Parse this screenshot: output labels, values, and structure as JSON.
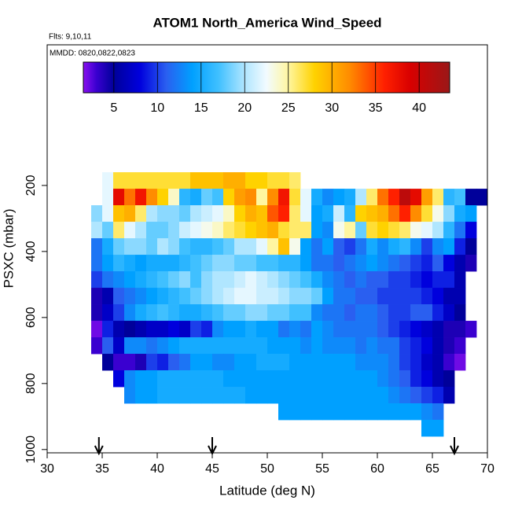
{
  "chart_data": {
    "type": "heatmap",
    "title": "ATOM1 North_America Wind_Speed",
    "subtitle": "Flts: 9,10,11",
    "annotation": "MMDD: 0820,0822,0823",
    "x_label": "Latitude (deg N)",
    "y_label": "PSXC (mbar)",
    "xlim": [
      30,
      70
    ],
    "xticks": [
      30,
      35,
      40,
      45,
      50,
      55,
      60,
      65,
      70
    ],
    "ylim": [
      1010,
      -226
    ],
    "yticks": [
      200,
      400,
      600,
      800,
      1000
    ],
    "xbins": [
      34,
      35,
      36,
      37,
      38,
      39,
      40,
      41,
      42,
      43,
      44,
      45,
      46,
      47,
      48,
      49,
      50,
      51,
      52,
      53,
      54,
      55,
      56,
      57,
      58,
      59,
      60,
      61,
      62,
      63,
      64,
      65,
      66,
      67,
      68,
      69,
      70
    ],
    "ybins": [
      160,
      210,
      260,
      310,
      360,
      410,
      460,
      510,
      560,
      610,
      660,
      710,
      760,
      810,
      860,
      910,
      960
    ],
    "z": [
      [
        null,
        22,
        27,
        27,
        27,
        27,
        27,
        27,
        27,
        29,
        29,
        29,
        30,
        30,
        28,
        28,
        27,
        27,
        26,
        null,
        null,
        null,
        null,
        null,
        null,
        null,
        null,
        null,
        null,
        null,
        null,
        null,
        null,
        null,
        null,
        null
      ],
      [
        null,
        22,
        38,
        33,
        37,
        32,
        28,
        24,
        16,
        15,
        18,
        17,
        28,
        31,
        32,
        25,
        32,
        37,
        27,
        22,
        15,
        13,
        14,
        15,
        20,
        26,
        33,
        36,
        41,
        38,
        31,
        26,
        16,
        17,
        5,
        5
      ],
      [
        19,
        22,
        29,
        30,
        26,
        20,
        19,
        19,
        18,
        20,
        21,
        22,
        24,
        28,
        30,
        29,
        34,
        36,
        26,
        22,
        14,
        15,
        21,
        16,
        28,
        29,
        30,
        33,
        36,
        32,
        27,
        23,
        19,
        15,
        14,
        null
      ],
      [
        20,
        18,
        26,
        22,
        20,
        18,
        18,
        19,
        21,
        22,
        23,
        24,
        26,
        27,
        28,
        29,
        30,
        27,
        26,
        26,
        14,
        13,
        23,
        25,
        18,
        27,
        28,
        27,
        26,
        23,
        22,
        20,
        16,
        12,
        8,
        null
      ],
      [
        12,
        15,
        18,
        19,
        19,
        18,
        20,
        19,
        17,
        16,
        16,
        17,
        18,
        20,
        20,
        22,
        25,
        29,
        23,
        14,
        12,
        14,
        11,
        10,
        12,
        15,
        13,
        15,
        16,
        13,
        10,
        13,
        14,
        9,
        5,
        null
      ],
      [
        12,
        14,
        16,
        15,
        14,
        15,
        15,
        15,
        16,
        17,
        18,
        19,
        19,
        18,
        18,
        17,
        17,
        16,
        16,
        14,
        12,
        12,
        11,
        12,
        13,
        14,
        13,
        12,
        11,
        10,
        9,
        11,
        8,
        6,
        4,
        null
      ],
      [
        10,
        12,
        13,
        14,
        15,
        16,
        17,
        18,
        19,
        17,
        19,
        20,
        20,
        21,
        22,
        21,
        20,
        19,
        18,
        17,
        15,
        13,
        12,
        11,
        12,
        11,
        11,
        10,
        10,
        9,
        8,
        9,
        9,
        6,
        null,
        null
      ],
      [
        4,
        6,
        11,
        12,
        13,
        14,
        15,
        16,
        17,
        18,
        19,
        20,
        21,
        22,
        22,
        21,
        21,
        20,
        19,
        19,
        18,
        14,
        12,
        12,
        11,
        11,
        10,
        10,
        10,
        10,
        9,
        8,
        6,
        6,
        null,
        null
      ],
      [
        4,
        7,
        10,
        13,
        15,
        16,
        17,
        16,
        15,
        15,
        16,
        17,
        18,
        18,
        19,
        19,
        18,
        18,
        17,
        17,
        13,
        12,
        12,
        11,
        12,
        12,
        11,
        10,
        10,
        11,
        11,
        9,
        7,
        5,
        null,
        null
      ],
      [
        2,
        9,
        6,
        5,
        6,
        7,
        7,
        8,
        7,
        10,
        9,
        13,
        14,
        14,
        15,
        14,
        14,
        12,
        13,
        12,
        14,
        13,
        12,
        12,
        12,
        12,
        11,
        10,
        9,
        8,
        7,
        6,
        4,
        4,
        3,
        null
      ],
      [
        3,
        11,
        7,
        13,
        13,
        12,
        13,
        14,
        15,
        15,
        15,
        15,
        15,
        15,
        15,
        15,
        14,
        14,
        14,
        13,
        14,
        13,
        13,
        13,
        12,
        13,
        12,
        12,
        10,
        9,
        8,
        6,
        4,
        3,
        null,
        null
      ],
      [
        null,
        5,
        3,
        3,
        4,
        10,
        9,
        11,
        12,
        14,
        14,
        13,
        13,
        14,
        14,
        15,
        15,
        15,
        14,
        14,
        14,
        14,
        14,
        14,
        13,
        13,
        13,
        12,
        10,
        9,
        7,
        6,
        3,
        2,
        null,
        null
      ],
      [
        null,
        null,
        8,
        13,
        14,
        14,
        15,
        15,
        15,
        15,
        15,
        15,
        14,
        14,
        14,
        14,
        14,
        14,
        14,
        14,
        14,
        14,
        14,
        14,
        14,
        14,
        13,
        12,
        11,
        9,
        8,
        6,
        5,
        null,
        null,
        null
      ],
      [
        null,
        null,
        null,
        13,
        14,
        14,
        15,
        15,
        15,
        15,
        15,
        15,
        15,
        15,
        14,
        14,
        14,
        14,
        14,
        14,
        14,
        14,
        14,
        14,
        14,
        14,
        14,
        13,
        12,
        11,
        10,
        9,
        6,
        null,
        null,
        null
      ],
      [
        null,
        null,
        null,
        null,
        null,
        null,
        null,
        null,
        null,
        null,
        null,
        null,
        null,
        null,
        null,
        null,
        null,
        14,
        14,
        14,
        14,
        14,
        14,
        14,
        14,
        14,
        14,
        14,
        14,
        14,
        13,
        12,
        null,
        null,
        null,
        null
      ],
      [
        null,
        null,
        null,
        null,
        null,
        null,
        null,
        null,
        null,
        null,
        null,
        null,
        null,
        null,
        null,
        null,
        null,
        null,
        null,
        null,
        null,
        null,
        null,
        null,
        null,
        null,
        null,
        null,
        null,
        null,
        14,
        14,
        null,
        null,
        null,
        null
      ]
    ],
    "clim": [
      1.5,
      43.5
    ],
    "cticks": [
      5,
      10,
      15,
      20,
      25,
      30,
      35,
      40
    ],
    "colorscale": [
      {
        "value": 1.5,
        "color": "#8a10f0"
      },
      {
        "value": 3,
        "color": "#3a00d0"
      },
      {
        "value": 5,
        "color": "#00009a"
      },
      {
        "value": 8,
        "color": "#0000dd"
      },
      {
        "value": 11,
        "color": "#2a5ff0"
      },
      {
        "value": 14,
        "color": "#00a0ff"
      },
      {
        "value": 17,
        "color": "#40c0ff"
      },
      {
        "value": 20,
        "color": "#b0e6ff"
      },
      {
        "value": 22.5,
        "color": "#f2fbff"
      },
      {
        "value": 25,
        "color": "#fff6a0"
      },
      {
        "value": 28,
        "color": "#ffd200"
      },
      {
        "value": 32,
        "color": "#ff8c00"
      },
      {
        "value": 36,
        "color": "#ff2000"
      },
      {
        "value": 39,
        "color": "#d80000"
      },
      {
        "value": 43.5,
        "color": "#9a1818"
      }
    ],
    "arrows": [
      34.7,
      45,
      67
    ]
  }
}
